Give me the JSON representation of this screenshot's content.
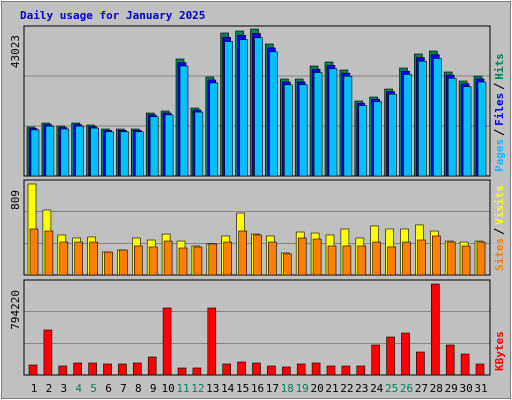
{
  "chart_data": [
    {
      "type": "bar",
      "title": "Daily usage for January 2025",
      "ylim": [
        0,
        43023
      ],
      "yticks": [
        43023
      ],
      "series": [
        {
          "name": "Hits",
          "color": "#00805C",
          "values": [
            14350,
            15510,
            14630,
            15510,
            14930,
            13760,
            13760,
            13760,
            18440,
            19020,
            34240,
            19900,
            28980,
            41860,
            42440,
            43023,
            38640,
            28390,
            28390,
            32200,
            33370,
            31030,
            21950,
            23120,
            25460,
            31610,
            35710,
            36590,
            30440,
            27810,
            29270
          ]
        },
        {
          "name": "Files",
          "color": "#0000FF",
          "values": [
            13920,
            15040,
            14190,
            15040,
            14480,
            13350,
            13350,
            13350,
            17890,
            18450,
            33210,
            19300,
            28110,
            40600,
            41170,
            41730,
            37480,
            27540,
            27540,
            31230,
            32370,
            30100,
            21290,
            22430,
            24700,
            30660,
            34640,
            35490,
            29530,
            26980,
            28390
          ]
        },
        {
          "name": "Pages",
          "color": "#00C0FF",
          "values": [
            13490,
            14580,
            13750,
            14580,
            14030,
            12930,
            12930,
            12930,
            17330,
            17880,
            32190,
            18710,
            27240,
            39350,
            39890,
            40440,
            36320,
            26690,
            26690,
            30270,
            31370,
            29170,
            20630,
            21730,
            23930,
            29710,
            33570,
            34390,
            28610,
            26140,
            27510
          ]
        }
      ]
    },
    {
      "type": "bar",
      "ylim": [
        0,
        809
      ],
      "yticks": [
        809
      ],
      "series": [
        {
          "name": "Visits",
          "color": "#FFFF00",
          "values": [
            809,
            578,
            356,
            329,
            338,
            204,
            222,
            329,
            311,
            364,
            302,
            258,
            276,
            347,
            551,
            364,
            347,
            196,
            382,
            373,
            356,
            409,
            329,
            436,
            409,
            409,
            445,
            391,
            302,
            293,
            302
          ]
        },
        {
          "name": "Sites",
          "color": "#FF8000",
          "values": [
            409,
            391,
            293,
            293,
            293,
            204,
            222,
            258,
            249,
            302,
            240,
            249,
            276,
            293,
            391,
            356,
            293,
            187,
            329,
            320,
            258,
            258,
            258,
            293,
            249,
            293,
            311,
            347,
            293,
            258,
            293
          ]
        }
      ]
    },
    {
      "type": "bar",
      "ylim": [
        0,
        794220
      ],
      "yticks": [
        794220
      ],
      "categories": [
        "1",
        "2",
        "3",
        "4",
        "5",
        "6",
        "7",
        "8",
        "9",
        "10",
        "11",
        "12",
        "13",
        "14",
        "15",
        "16",
        "17",
        "18",
        "19",
        "20",
        "21",
        "22",
        "23",
        "24",
        "25",
        "26",
        "27",
        "28",
        "29",
        "30",
        "31"
      ],
      "category_colors": [
        "#000000",
        "#000000",
        "#000000",
        "#00805C",
        "#00805C",
        "#000000",
        "#000000",
        "#000000",
        "#000000",
        "#000000",
        "#00805C",
        "#00805C",
        "#000000",
        "#000000",
        "#000000",
        "#000000",
        "#000000",
        "#00805C",
        "#00805C",
        "#000000",
        "#000000",
        "#000000",
        "#000000",
        "#000000",
        "#00805C",
        "#00805C",
        "#000000",
        "#000000",
        "#000000",
        "#000000",
        "#000000"
      ],
      "series": [
        {
          "name": "KBytes",
          "color": "#FF0000",
          "values": [
            87280,
            392760,
            78550,
            104740,
            104740,
            96000,
            96000,
            104740,
            157100,
            584780,
            61100,
            61100,
            584780,
            96000,
            113460,
            104740,
            78550,
            69820,
            96000,
            104740,
            78550,
            78550,
            78550,
            261840,
            331660,
            366580,
            200740,
            794220,
            261840,
            183290,
            96000
          ]
        }
      ]
    }
  ]
}
